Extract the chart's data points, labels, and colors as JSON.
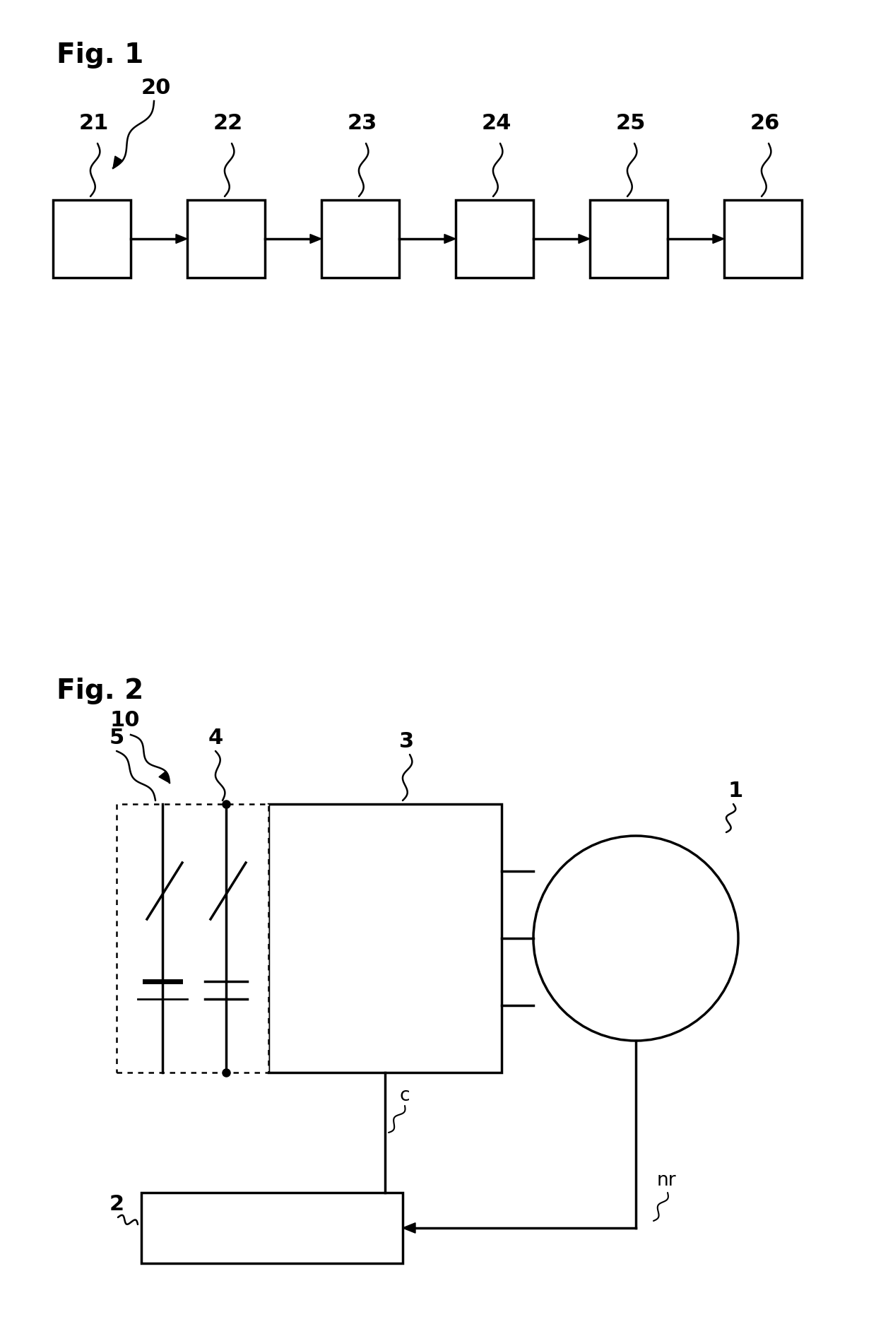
{
  "fig1_title": "Fig. 1",
  "fig2_title": "Fig. 2",
  "fig1_label_main": "20",
  "fig1_box_labels": [
    "21",
    "22",
    "23",
    "24",
    "25",
    "26"
  ],
  "fig2_label_system": "10",
  "fig2_label_inverter": "3",
  "fig2_label_motor": "1",
  "fig2_label_controller": "2",
  "fig2_label_battery": "5",
  "fig2_label_capacitor": "4",
  "fig2_label_c": "c",
  "fig2_label_nr": "nr",
  "bg_color": "#ffffff",
  "line_color": "#000000",
  "text_color": "#000000",
  "fontsize_title": 28,
  "fontsize_label": 22,
  "fontsize_ref": 19
}
